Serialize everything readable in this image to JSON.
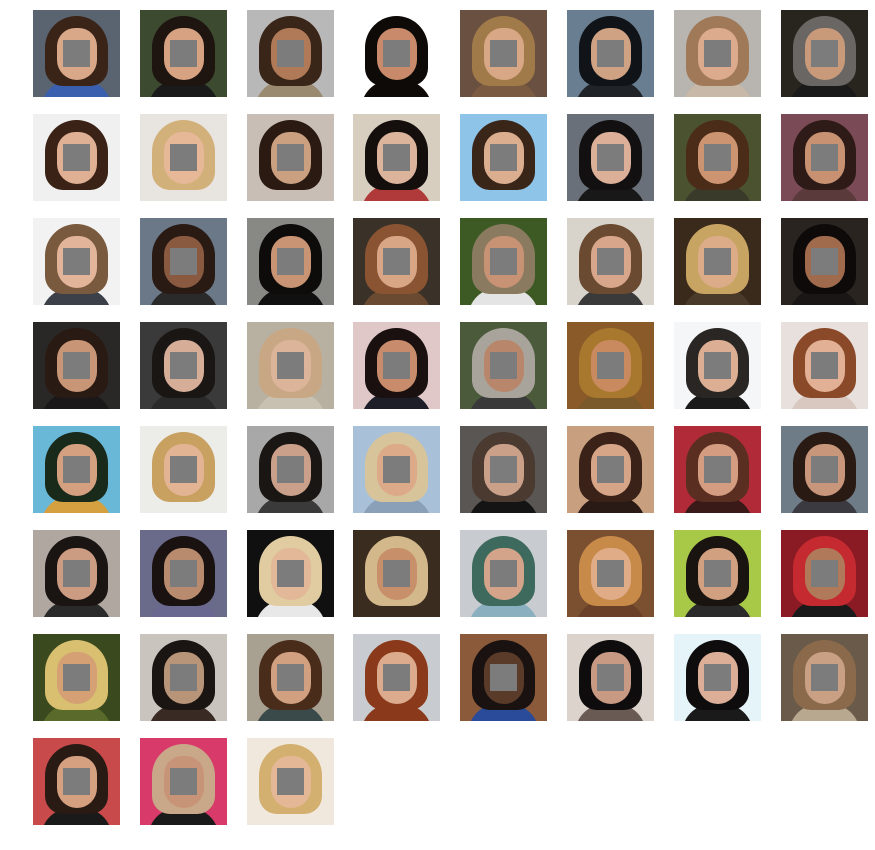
{
  "grid": {
    "columns": 8,
    "mask_color": "#7c7c7c",
    "background": "#ffffff",
    "tiles": [
      {
        "id": 1,
        "bg": "#5a6470",
        "hair": "#3a2418",
        "skin": "#d8a888",
        "cloth": "#3a5fae"
      },
      {
        "id": 2,
        "bg": "#3c4a30",
        "hair": "#1e1410",
        "skin": "#d6a282",
        "cloth": "#1a1a1a"
      },
      {
        "id": 3,
        "bg": "#b8b8b8",
        "hair": "#3a2618",
        "skin": "#b07a58",
        "cloth": "#9a8a70"
      },
      {
        "id": 4,
        "bg": "#ffffff",
        "hair": "#0e0a08",
        "skin": "#c88a6a",
        "cloth": "#0e0a08"
      },
      {
        "id": 5,
        "bg": "#6a5040",
        "hair": "#a07a48",
        "skin": "#d8a886",
        "cloth": "#7a5a40"
      },
      {
        "id": 6,
        "bg": "#6a7e92",
        "hair": "#101418",
        "skin": "#d0a284",
        "cloth": "#202428"
      },
      {
        "id": 7,
        "bg": "#b8b4b0",
        "hair": "#a07a58",
        "skin": "#dcaa8c",
        "cloth": "#c8b8a8"
      },
      {
        "id": 8,
        "bg": "#28241e",
        "hair": "#6a6664",
        "skin": "#c89a7a",
        "cloth": "#1a1a1a"
      },
      {
        "id": 9,
        "bg": "#f0f0f0",
        "hair": "#3a2216",
        "skin": "#e0b094",
        "cloth": "#f0f0f0"
      },
      {
        "id": 10,
        "bg": "#e8e4e0",
        "hair": "#d2b07a",
        "skin": "#e6b898",
        "cloth": "#e8e4e0"
      },
      {
        "id": 11,
        "bg": "#c8beb6",
        "hair": "#2a1a12",
        "skin": "#caa080",
        "cloth": "#c8beb6"
      },
      {
        "id": 12,
        "bg": "#d8cec0",
        "hair": "#140e0c",
        "skin": "#dcb49c",
        "cloth": "#b03a3a"
      },
      {
        "id": 13,
        "bg": "#8ec4e8",
        "hair": "#3a2618",
        "skin": "#dcae90",
        "cloth": "#8ec4e8"
      },
      {
        "id": 14,
        "bg": "#6a707a",
        "hair": "#121010",
        "skin": "#dcb098",
        "cloth": "#181818"
      },
      {
        "id": 15,
        "bg": "#4a5230",
        "hair": "#4a2c18",
        "skin": "#cc9470",
        "cloth": "#3a3a2a"
      },
      {
        "id": 16,
        "bg": "#7a4a56",
        "hair": "#2e1a16",
        "skin": "#c89272",
        "cloth": "#5a3a3a"
      },
      {
        "id": 17,
        "bg": "#f2f2f2",
        "hair": "#7a5a3e",
        "skin": "#e2b49a",
        "cloth": "#3c4048"
      },
      {
        "id": 18,
        "bg": "#6a7888",
        "hair": "#2a1a14",
        "skin": "#8a5a40",
        "cloth": "#2a2a2a"
      },
      {
        "id": 19,
        "bg": "#888884",
        "hair": "#0e0c0a",
        "skin": "#c89474",
        "cloth": "#101010"
      },
      {
        "id": 20,
        "bg": "#3a3228",
        "hair": "#8a5432",
        "skin": "#d8a684",
        "cloth": "#6a4a30"
      },
      {
        "id": 21,
        "bg": "#3e5a24",
        "hair": "#8a7a60",
        "skin": "#c89274",
        "cloth": "#e4e4e4"
      },
      {
        "id": 22,
        "bg": "#d8d4cc",
        "hair": "#6a4a30",
        "skin": "#d8a68a",
        "cloth": "#3a3a3a"
      },
      {
        "id": 23,
        "bg": "#3a2a1c",
        "hair": "#c8a462",
        "skin": "#dcac88",
        "cloth": "#4a3a2a"
      },
      {
        "id": 24,
        "bg": "#2a2420",
        "hair": "#0e0a0a",
        "skin": "#a06a4c",
        "cloth": "#1a1616"
      },
      {
        "id": 25,
        "bg": "#2a2826",
        "hair": "#2a1a14",
        "skin": "#c89676",
        "cloth": "#1a1818"
      },
      {
        "id": 26,
        "bg": "#3a3a3a",
        "hair": "#1a1614",
        "skin": "#d6ae98",
        "cloth": "#2a2a2a"
      },
      {
        "id": 27,
        "bg": "#b8b0a0",
        "hair": "#c8a884",
        "skin": "#dcb49a",
        "cloth": "#c8c0b0"
      },
      {
        "id": 28,
        "bg": "#e0c8c8",
        "hair": "#1a1010",
        "skin": "#c88c6c",
        "cloth": "#1e1e28"
      },
      {
        "id": 29,
        "bg": "#4a5a3a",
        "hair": "#a8a49c",
        "skin": "#b8866a",
        "cloth": "#3a3a3a"
      },
      {
        "id": 30,
        "bg": "#8a5a28",
        "hair": "#a8782e",
        "skin": "#c88a5e",
        "cloth": "#7a5a2a"
      },
      {
        "id": 31,
        "bg": "#f4f6f8",
        "hair": "#2a2624",
        "skin": "#dcae94",
        "cloth": "#1a1a1a"
      },
      {
        "id": 32,
        "bg": "#e8e0dc",
        "hair": "#8a4a2a",
        "skin": "#e2b094",
        "cloth": "#d8c8c0"
      },
      {
        "id": 33,
        "bg": "#6ab8d8",
        "hair": "#1a2a1a",
        "skin": "#d4a080",
        "cloth": "#d4a040"
      },
      {
        "id": 34,
        "bg": "#ecece8",
        "hair": "#c8a060",
        "skin": "#e2b494",
        "cloth": "#ecece8"
      },
      {
        "id": 35,
        "bg": "#a8a8a8",
        "hair": "#1a1614",
        "skin": "#caa08a",
        "cloth": "#3a3a3a"
      },
      {
        "id": 36,
        "bg": "#a8c0d8",
        "hair": "#d8c49a",
        "skin": "#dcaa88",
        "cloth": "#8aa0b8"
      },
      {
        "id": 37,
        "bg": "#5a5654",
        "hair": "#4a3a30",
        "skin": "#caa088",
        "cloth": "#141414"
      },
      {
        "id": 38,
        "bg": "#c8a080",
        "hair": "#3a2218",
        "skin": "#d6a486",
        "cloth": "#2a1a16"
      },
      {
        "id": 39,
        "bg": "#b02a38",
        "hair": "#5a2e20",
        "skin": "#d49c80",
        "cloth": "#3a1a18"
      },
      {
        "id": 40,
        "bg": "#6e7c88",
        "hair": "#2a1a14",
        "skin": "#c8967a",
        "cloth": "#3a3a40"
      },
      {
        "id": 41,
        "bg": "#b0a8a0",
        "hair": "#1a1412",
        "skin": "#cc9c82",
        "cloth": "#2a2a2a"
      },
      {
        "id": 42,
        "bg": "#6a6a8a",
        "hair": "#1a1210",
        "skin": "#b88a6e",
        "cloth": "#6a6890"
      },
      {
        "id": 43,
        "bg": "#101010",
        "hair": "#e0cca0",
        "skin": "#e2b898",
        "cloth": "#e8e8e8"
      },
      {
        "id": 44,
        "bg": "#3a2c1e",
        "hair": "#d2b88a",
        "skin": "#c8906a",
        "cloth": "#3a2c1e"
      },
      {
        "id": 45,
        "bg": "#c8ccd0",
        "hair": "#3e6a5e",
        "skin": "#d4a48a",
        "cloth": "#8ab0c0"
      },
      {
        "id": 46,
        "bg": "#7a5030",
        "hair": "#c88a48",
        "skin": "#e0ac88",
        "cloth": "#6a4028"
      },
      {
        "id": 47,
        "bg": "#a8c848",
        "hair": "#1a1410",
        "skin": "#d0a080",
        "cloth": "#2a2a2a"
      },
      {
        "id": 48,
        "bg": "#8a1a24",
        "hair": "#c42a30",
        "skin": "#b07a5a",
        "cloth": "#1a1a1a"
      },
      {
        "id": 49,
        "bg": "#3a4a1e",
        "hair": "#d8c070",
        "skin": "#d4a074",
        "cloth": "#5a6a2a"
      },
      {
        "id": 50,
        "bg": "#cac4be",
        "hair": "#1a1412",
        "skin": "#b89478",
        "cloth": "#3a2a24"
      },
      {
        "id": 51,
        "bg": "#a8a090",
        "hair": "#4a2c1a",
        "skin": "#d0a080",
        "cloth": "#3a4a4a"
      },
      {
        "id": 52,
        "bg": "#c8ccd0",
        "hair": "#8a3a1a",
        "skin": "#dcaa8c",
        "cloth": "#8a3a1a"
      },
      {
        "id": 53,
        "bg": "#8a5a3a",
        "hair": "#1a1210",
        "skin": "#5a3a28",
        "cloth": "#2a4a9a"
      },
      {
        "id": 54,
        "bg": "#dcd4cc",
        "hair": "#0e0c0c",
        "skin": "#c89a84",
        "cloth": "#6a5a54"
      },
      {
        "id": 55,
        "bg": "#e4f4f8",
        "hair": "#0e0c0c",
        "skin": "#dcae98",
        "cloth": "#1a1a1a"
      },
      {
        "id": 56,
        "bg": "#6a5a4a",
        "hair": "#8a6a4a",
        "skin": "#caa084",
        "cloth": "#b8a890"
      },
      {
        "id": 57,
        "bg": "#c84a4a",
        "hair": "#2a1a14",
        "skin": "#d4a080",
        "cloth": "#1a1a1a"
      },
      {
        "id": 58,
        "bg": "#d83a6a",
        "hair": "#c8a888",
        "skin": "#c89478",
        "cloth": "#1a1a1a"
      },
      {
        "id": 59,
        "bg": "#f0e8dc",
        "hair": "#d4b070",
        "skin": "#e4b896",
        "cloth": "#f0e8dc"
      }
    ]
  }
}
